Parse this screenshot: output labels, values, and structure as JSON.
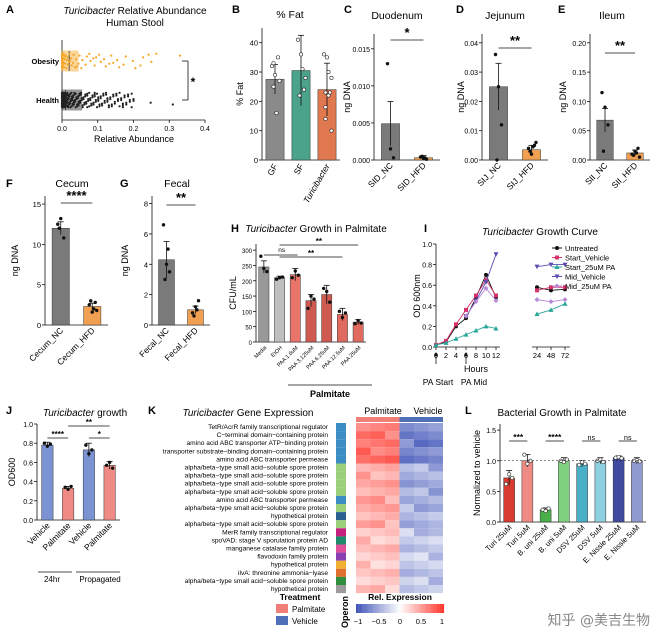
{
  "panels": {
    "A": {
      "letter": "A",
      "title_italic": "Turicibacter",
      "title_rest": " Relative Abundance",
      "subtitle": "Human Stool",
      "xlabel": "Relative Abundance",
      "groups": [
        "Obesity",
        "Health"
      ],
      "xticks": [
        "0.0",
        "0.1",
        "0.2",
        "0.3",
        "0.4"
      ],
      "sig": "*",
      "colors": {
        "Obesity": "#f5a623",
        "Health": "#222222"
      }
    },
    "B": {
      "letter": "B",
      "title": "% Fat",
      "ylabel": "% Fat",
      "categories": [
        "GF",
        "SF",
        "Turicibacter"
      ],
      "yticks": [
        "0",
        "10",
        "20",
        "30",
        "40"
      ]
    },
    "C": {
      "letter": "C",
      "title": "Duodenum",
      "ylabel": "ng DNA",
      "categories": [
        "SID_NC",
        "SID_HFD"
      ],
      "yticks": [
        "0.000",
        "0.005",
        "0.010",
        "0.015"
      ],
      "sig": "*"
    },
    "D": {
      "letter": "D",
      "title": "Jejunum",
      "ylabel": "ng DNA",
      "categories": [
        "SIJ_NC",
        "SIJ_HFD"
      ],
      "yticks": [
        "0.00",
        "0.01",
        "0.02",
        "0.03",
        "0.04"
      ],
      "sig": "**"
    },
    "E": {
      "letter": "E",
      "title": "Ileum",
      "ylabel": "ng DNA",
      "categories": [
        "SII_NC",
        "SII_HFD"
      ],
      "yticks": [
        "0.00",
        "0.05",
        "0.10",
        "0.15",
        "0.20"
      ],
      "sig": "**"
    },
    "F": {
      "letter": "F",
      "title": "Cecum",
      "ylabel": "ng DNA",
      "categories": [
        "Cecum_NC",
        "Cecum_HFD"
      ],
      "yticks": [
        "0",
        "5",
        "10",
        "15"
      ],
      "sig": "****"
    },
    "G": {
      "letter": "G",
      "title": "Fecal",
      "ylabel": "ng DNA",
      "categories": [
        "Fecal_NC",
        "Fecal_HFD"
      ],
      "yticks": [
        "0",
        "2",
        "4",
        "6",
        "8"
      ],
      "sig": "**"
    },
    "H": {
      "letter": "H",
      "title_italic": "Turicibacter",
      "title_rest": " Growth in Palmitate",
      "ylabel": "CFU/mL",
      "categories": [
        "Media",
        "EtOH",
        "PAA 1.6uM",
        "PAA 3.125uM",
        "PAA 6.25uM",
        "PAA 12.5uM",
        "PAA 25uM"
      ],
      "yticks": [
        "0",
        "50",
        "100",
        "150",
        "200",
        "250",
        "300"
      ],
      "ns": "ns",
      "sig1": "**",
      "sig2": "**",
      "footer": "Palmitate"
    },
    "I": {
      "letter": "I",
      "title_italic": "Turicibacter",
      "title_rest": " Growth Curve",
      "ylabel": "OD 600nm",
      "xlabel": "Hours",
      "xticks": [
        "0",
        "2",
        "4",
        "6",
        "8",
        "10",
        "12",
        "24",
        "48",
        "72"
      ],
      "yticks": [
        "0.0",
        "0.2",
        "0.4",
        "0.6",
        "0.8",
        "1.0"
      ],
      "annot1": "PA Start",
      "annot2": "PA Mid",
      "legend": [
        "Untreated",
        "Start_Vehicle",
        "Start_25uM PA",
        "Mid_Vehicle",
        "Mid_25uM PA"
      ]
    },
    "J": {
      "letter": "J",
      "title_italic": "Turicibacter",
      "title_rest": " growth",
      "ylabel": "OD600",
      "categories": [
        "Vehicle",
        "Palmitate",
        "Vehicle",
        "Palmitate"
      ],
      "groups": [
        "24hr",
        "Propagated"
      ],
      "yticks": [
        "0.0",
        "0.2",
        "0.4",
        "0.6",
        "0.8",
        "1.0"
      ],
      "sig_a": "****",
      "sig_b": "**",
      "sig_c": "*"
    },
    "K": {
      "letter": "K",
      "title_italic": "Turicibacter",
      "title_rest": " Gene Expression",
      "col_groups": [
        "Palmitate",
        "Vehicle"
      ],
      "genes": [
        "TetR/AcrR family transcriptional regulator",
        "C−terminal domain−containing protein",
        "amino acid ABC transporter ATP−binding protein",
        "transporter substrate−binding domain−containing protein",
        "amino acid ABC transporter permease",
        "alpha/beta−type small acid−soluble spore protein",
        "alpha/beta−type small acid−soluble spore protein",
        "alpha/beta−type small acid−soluble spore protein",
        "alpha/beta−type small acid−soluble spore protein",
        "amino acid ABC transporter permease",
        "alpha/beta−type small acid−soluble spore protein",
        "hypothetical protein",
        "alpha/beta−type small acid−soluble spore protein",
        "MerR family transcriptional regulator",
        "spoVAD: stage V sporulation protein AD",
        "manganese catalase family protein",
        "flavodoxin family protein",
        "hypothetical protein",
        "ilvA: threonine ammonia−lyase",
        "alpha/beta−type small acid−soluble spore protein",
        "hypothetical protein"
      ],
      "treatment_title": "Treatment",
      "treatment_items": [
        "Palmitate",
        "Vehicle"
      ],
      "operon_label": "Operon",
      "scale_title": "Rel. Expression",
      "scale_ticks": [
        "−1",
        "−0.5",
        "0",
        "0.5",
        "1"
      ]
    },
    "L": {
      "letter": "L",
      "title": "Bacterial Growth in Palmitate",
      "ylabel": "Normalized to vehicle",
      "categories": [
        "Turi 25uM",
        "Turi 5uM",
        "B. uni 25uM",
        "B. uni 5uM",
        "DSV 25uM",
        "DSV 5uM",
        "E. Nissle 25uM",
        "E. Nissle 5uM"
      ],
      "yticks": [
        "0.0",
        "0.5",
        "1.0",
        "1.5"
      ],
      "sigs": [
        "***",
        "****",
        "ns",
        "ns"
      ]
    }
  },
  "watermark": "知乎 @美吉生物",
  "chart_data": [
    {
      "panel": "A",
      "type": "scatter",
      "title": "Turicibacter Relative Abundance",
      "subtitle": "Human Stool",
      "xlabel": "Relative Abundance",
      "categories": [
        "Obesity",
        "Health"
      ],
      "xlim": [
        0,
        0.4
      ],
      "box": {
        "Obesity": {
          "q1": 0.0,
          "median": 0.02,
          "q3": 0.045,
          "max": 0.33
        },
        "Health": {
          "q1": 0.0,
          "median": 0.01,
          "q3": 0.055,
          "max": 0.31
        }
      }
    },
    {
      "panel": "B",
      "type": "bar",
      "title": "% Fat",
      "ylabel": "% Fat",
      "categories": [
        "GF",
        "SF",
        "Turicibacter"
      ],
      "values": [
        27.5,
        30.5,
        24
      ],
      "errors": [
        5,
        12,
        9
      ],
      "ylim": [
        0,
        45
      ],
      "colors": [
        "#8a8a8a",
        "#4aa38a",
        "#e07850"
      ]
    },
    {
      "panel": "C",
      "type": "bar",
      "title": "Duodenum",
      "ylabel": "ng DNA",
      "categories": [
        "SID_NC",
        "SID_HFD"
      ],
      "values": [
        0.0049,
        0.0003
      ],
      "errors": [
        0.003,
        0.0003
      ],
      "ylim": [
        0,
        0.017
      ]
    },
    {
      "panel": "D",
      "type": "bar",
      "title": "Jejunum",
      "ylabel": "ng DNA",
      "categories": [
        "SIJ_NC",
        "SIJ_HFD"
      ],
      "values": [
        0.025,
        0.0035
      ],
      "errors": [
        0.008,
        0.0015
      ],
      "ylim": [
        0,
        0.043
      ]
    },
    {
      "panel": "E",
      "type": "bar",
      "title": "Ileum",
      "ylabel": "ng DNA",
      "categories": [
        "SII_NC",
        "SII_HFD"
      ],
      "values": [
        0.068,
        0.012
      ],
      "errors": [
        0.02,
        0.005
      ],
      "ylim": [
        0,
        0.215
      ]
    },
    {
      "panel": "F",
      "type": "bar",
      "title": "Cecum",
      "ylabel": "ng DNA",
      "categories": [
        "Cecum_NC",
        "Cecum_HFD"
      ],
      "values": [
        12,
        2.3
      ],
      "errors": [
        0.8,
        0.4
      ],
      "ylim": [
        0,
        16
      ]
    },
    {
      "panel": "G",
      "type": "bar",
      "title": "Fecal",
      "ylabel": "ng DNA",
      "categories": [
        "Fecal_NC",
        "Fecal_HFD"
      ],
      "values": [
        4.3,
        1.0
      ],
      "errors": [
        1.2,
        0.25
      ],
      "ylim": [
        0,
        8.5
      ]
    },
    {
      "panel": "H",
      "type": "bar",
      "title": "Turicibacter Growth in Palmitate",
      "ylabel": "CFU/mL",
      "categories": [
        "Media",
        "EtOH",
        "PAA 1.6uM",
        "PAA 3.125uM",
        "PAA 6.25uM",
        "PAA 12.5uM",
        "PAA 25uM"
      ],
      "values": [
        245,
        210,
        220,
        135,
        155,
        90,
        65
      ],
      "errors": [
        20,
        5,
        20,
        20,
        30,
        20,
        8
      ],
      "ylim": [
        0,
        320
      ]
    },
    {
      "panel": "I",
      "type": "line",
      "title": "Turicibacter Growth Curve",
      "xlabel": "Hours",
      "ylabel": "OD 600nm",
      "x": [
        0,
        2,
        4,
        6,
        8,
        10,
        12,
        24,
        48,
        72
      ],
      "ylim": [
        0,
        1.0
      ],
      "series": [
        {
          "name": "Untreated",
          "values": [
            0.02,
            0.05,
            0.2,
            0.28,
            0.48,
            0.7,
            0.48,
            0.58,
            0.55,
            0.56
          ]
        },
        {
          "name": "Start_Vehicle",
          "values": [
            0.02,
            0.06,
            0.22,
            0.36,
            0.5,
            0.65,
            0.5,
            0.55,
            0.58,
            0.58
          ]
        },
        {
          "name": "Start_25uM PA",
          "values": [
            0.02,
            0.04,
            0.08,
            0.12,
            0.16,
            0.2,
            0.18,
            0.32,
            0.36,
            0.42
          ]
        },
        {
          "name": "Mid_Vehicle",
          "values": [
            null,
            null,
            null,
            0.3,
            0.45,
            0.63,
            0.9,
            0.78,
            0.8,
            0.8
          ]
        },
        {
          "name": "Mid_25uM PA",
          "values": [
            null,
            null,
            null,
            0.3,
            0.44,
            0.57,
            0.45,
            0.46,
            0.44,
            0.46
          ]
        }
      ]
    },
    {
      "panel": "J",
      "type": "bar",
      "title": "Turicibacter growth",
      "ylabel": "OD600",
      "categories": [
        "Vehicle",
        "Palmitate",
        "Vehicle",
        "Palmitate"
      ],
      "values": [
        0.78,
        0.33,
        0.73,
        0.57
      ],
      "errors": [
        0.03,
        0.02,
        0.07,
        0.04
      ],
      "ylim": [
        0,
        1.0
      ]
    },
    {
      "panel": "K",
      "type": "heatmap",
      "title": "Turicibacter Gene Expression",
      "columns": [
        "Palmitate",
        "Palmitate",
        "Palmitate",
        "Vehicle",
        "Vehicle",
        "Vehicle"
      ],
      "scale": [
        -1,
        1
      ]
    },
    {
      "panel": "L",
      "type": "bar",
      "title": "Bacterial Growth in Palmitate",
      "ylabel": "Normalized to vehicle",
      "categories": [
        "Turi 25uM",
        "Turi 5uM",
        "B. uni 25uM",
        "B. uni 5uM",
        "DSV 25uM",
        "DSV 5uM",
        "E. Nissle 25uM",
        "E. Nissle 5uM"
      ],
      "values": [
        0.72,
        1.0,
        0.2,
        1.0,
        0.95,
        1.0,
        1.05,
        1.0
      ],
      "errors": [
        0.12,
        0.1,
        0.03,
        0.05,
        0.05,
        0.05,
        0.03,
        0.05
      ],
      "ylim": [
        0,
        1.6
      ]
    }
  ]
}
